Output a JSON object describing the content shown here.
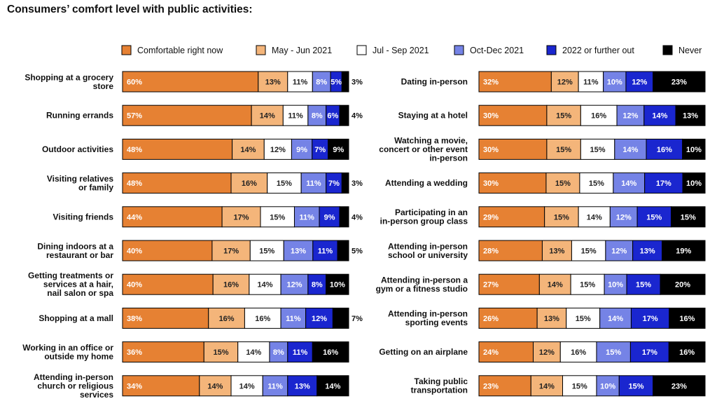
{
  "chart_data": {
    "type": "bar",
    "stacked": true,
    "orientation": "horizontal",
    "title": "Consumers’ comfort level with public activities:",
    "unit": "%",
    "legend": [
      "Comfortable right now",
      "May - Jun 2021",
      "Jul - Sep 2021",
      "Oct-Dec 2021",
      "2022 or further out",
      "Never"
    ],
    "colors": [
      "#e68133",
      "#f4b57a",
      "#ffffff",
      "#7583e6",
      "#1a26cf",
      "#000000"
    ],
    "label_colors": [
      "#ffffff",
      "#222222",
      "#222222",
      "#ffffff",
      "#ffffff",
      "#ffffff"
    ],
    "panels": [
      {
        "categories": [
          [
            "Shopping at a grocery",
            "store"
          ],
          [
            "Running errands"
          ],
          [
            "Outdoor activities"
          ],
          [
            "Visiting relatives",
            "or family"
          ],
          [
            "Visiting friends"
          ],
          [
            "Dining indoors at a",
            "restaurant or bar"
          ],
          [
            "Getting treatments or",
            "services at a hair,",
            "nail salon or spa"
          ],
          [
            "Shopping at a mall"
          ],
          [
            "Working in an office or",
            "outside my home"
          ],
          [
            "Attending in-person",
            "church or religious",
            "services"
          ]
        ],
        "values": [
          [
            60,
            13,
            11,
            8,
            5,
            3
          ],
          [
            57,
            14,
            11,
            8,
            6,
            4
          ],
          [
            48,
            14,
            12,
            9,
            7,
            9
          ],
          [
            48,
            16,
            15,
            11,
            7,
            3
          ],
          [
            44,
            17,
            15,
            11,
            9,
            4
          ],
          [
            40,
            17,
            15,
            13,
            11,
            5
          ],
          [
            40,
            16,
            14,
            12,
            8,
            10
          ],
          [
            38,
            16,
            16,
            11,
            12,
            7
          ],
          [
            36,
            15,
            14,
            8,
            11,
            16
          ],
          [
            34,
            14,
            14,
            11,
            13,
            14
          ]
        ]
      },
      {
        "categories": [
          [
            "Dating in-person"
          ],
          [
            "Staying at a hotel"
          ],
          [
            "Watching a movie,",
            "concert or other event",
            "in-person"
          ],
          [
            "Attending a wedding"
          ],
          [
            "Participating in an",
            "in-person group class"
          ],
          [
            "Attending in-person",
            "school or university"
          ],
          [
            "Attending in-person a",
            "gym or a fitness studio"
          ],
          [
            "Attending in-person",
            "sporting events"
          ],
          [
            "Getting on an airplane"
          ],
          [
            "Taking public",
            "transportation"
          ]
        ],
        "values": [
          [
            32,
            12,
            11,
            10,
            12,
            23
          ],
          [
            30,
            15,
            16,
            12,
            14,
            13
          ],
          [
            30,
            15,
            15,
            14,
            16,
            10
          ],
          [
            30,
            15,
            15,
            14,
            17,
            10
          ],
          [
            29,
            15,
            14,
            12,
            15,
            15
          ],
          [
            28,
            13,
            15,
            12,
            13,
            19
          ],
          [
            27,
            14,
            15,
            10,
            15,
            20
          ],
          [
            26,
            13,
            15,
            14,
            17,
            16
          ],
          [
            24,
            12,
            16,
            15,
            17,
            16
          ],
          [
            23,
            14,
            15,
            10,
            15,
            23
          ]
        ]
      }
    ]
  }
}
